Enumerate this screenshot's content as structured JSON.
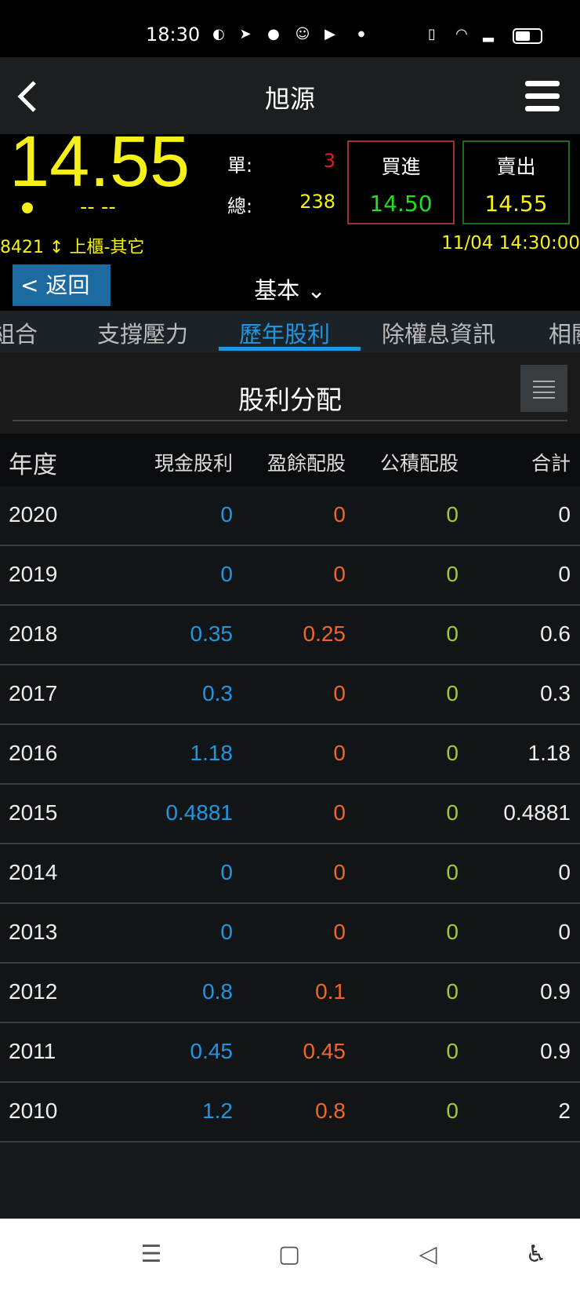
{
  "status": {
    "time": "18:30",
    "icons": [
      "discord-icon",
      "telegram-icon",
      "line-icon",
      "gomaji-icon",
      "youtube-icon",
      "dot-icon",
      "vibrate-icon",
      "wifi-icon",
      "signal-icon",
      "battery-icon"
    ]
  },
  "header": {
    "title": "旭源",
    "menu_icon": "hamburger-icon",
    "back_icon": "chevron-left-icon"
  },
  "quote": {
    "price": "14.55",
    "change": "-- --",
    "single_label": "單:",
    "single_value": "3",
    "total_label": "總:",
    "total_value": "238",
    "buy_label": "買進",
    "buy_price": "14.50",
    "sell_label": "賣出",
    "sell_price": "14.55",
    "code": "8421",
    "market": "上櫃-其它",
    "timestamp": "11/04 14:30:00"
  },
  "nav": {
    "back_label": "返回",
    "category": "基本"
  },
  "tabs": [
    {
      "label": "組合"
    },
    {
      "label": "支撐壓力"
    },
    {
      "label": "歷年股利",
      "active": true
    },
    {
      "label": "除權息資訊"
    },
    {
      "label": "相關"
    }
  ],
  "section": {
    "title": "股利分配"
  },
  "table": {
    "headers": [
      "年度",
      "現金股利",
      "盈餘配股",
      "公積配股",
      "合計"
    ],
    "rows": [
      [
        "2020",
        "0",
        "0",
        "0",
        "0"
      ],
      [
        "2019",
        "0",
        "0",
        "0",
        "0"
      ],
      [
        "2018",
        "0.35",
        "0.25",
        "0",
        "0.6"
      ],
      [
        "2017",
        "0.3",
        "0",
        "0",
        "0.3"
      ],
      [
        "2016",
        "1.18",
        "0",
        "0",
        "1.18"
      ],
      [
        "2015",
        "0.4881",
        "0",
        "0",
        "0.4881"
      ],
      [
        "2014",
        "0",
        "0",
        "0",
        "0"
      ],
      [
        "2013",
        "0",
        "0",
        "0",
        "0"
      ],
      [
        "2012",
        "0.8",
        "0.1",
        "0",
        "0.9"
      ],
      [
        "2011",
        "0.45",
        "0.45",
        "0",
        "0.9"
      ],
      [
        "2010",
        "1.2",
        "0.8",
        "0",
        "2"
      ]
    ]
  },
  "colors": {
    "price": "#f5f018",
    "cash": "#2196e0",
    "surplus": "#f26522",
    "capital": "#a8c82a",
    "accent": "#2196e0",
    "buy": "#22dd22"
  }
}
